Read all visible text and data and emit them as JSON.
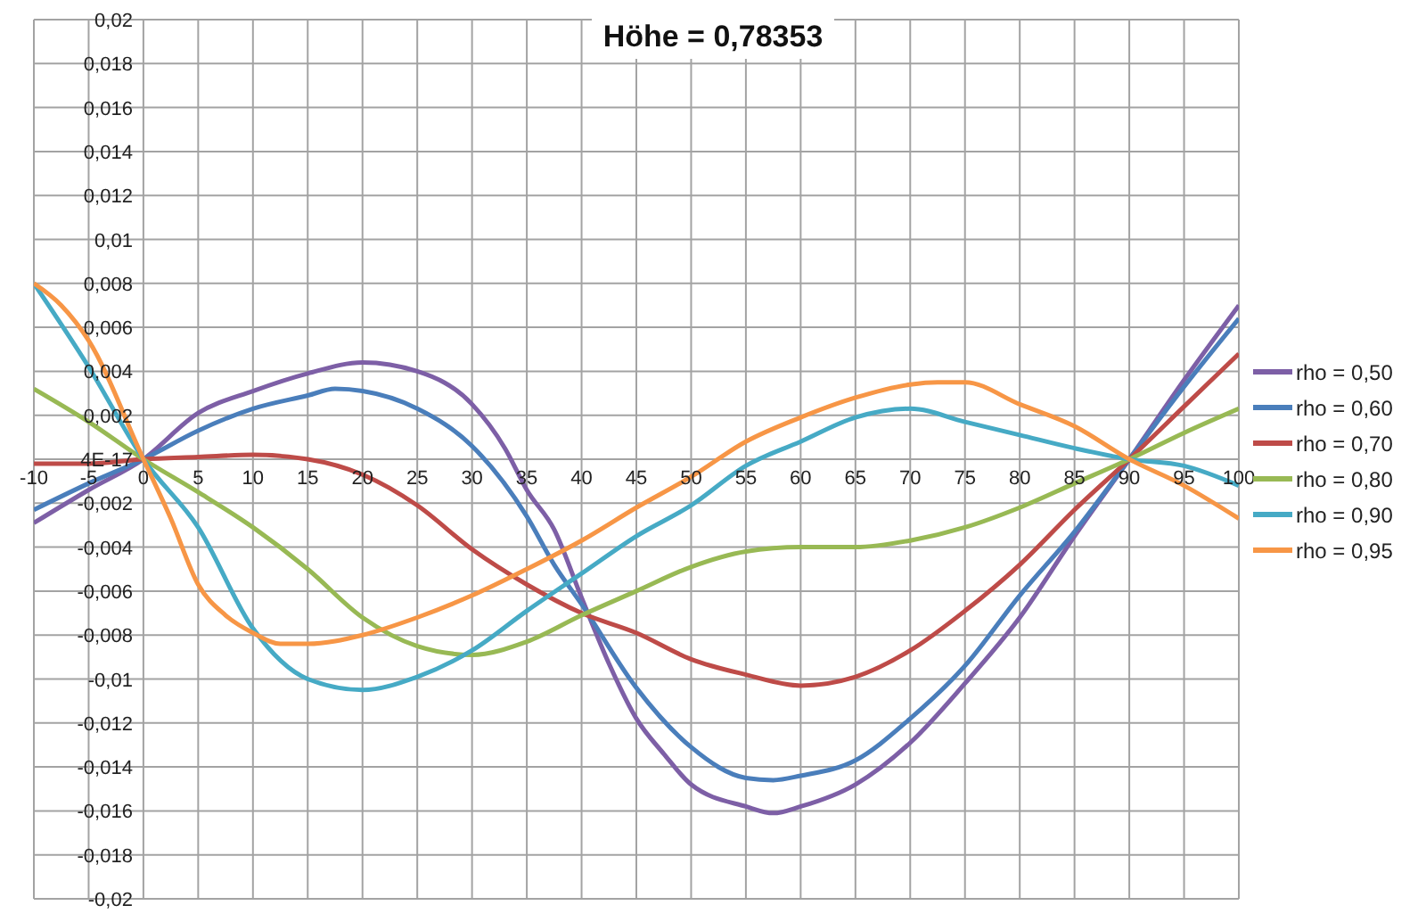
{
  "chart_data": {
    "type": "line",
    "title": "Höhe = 0,78353",
    "xlim": [
      -10,
      100
    ],
    "xticks": [
      -10,
      -5,
      0,
      5,
      10,
      15,
      20,
      25,
      30,
      35,
      40,
      45,
      50,
      55,
      60,
      65,
      70,
      75,
      80,
      85,
      90,
      95,
      100
    ],
    "ylim": [
      -0.02,
      0.02
    ],
    "yticks": [
      {
        "value": 0.02,
        "label": "0,02"
      },
      {
        "value": 0.018,
        "label": "0,018"
      },
      {
        "value": 0.016,
        "label": "0,016"
      },
      {
        "value": 0.014,
        "label": "0,014"
      },
      {
        "value": 0.012,
        "label": "0,012"
      },
      {
        "value": 0.01,
        "label": "0,01"
      },
      {
        "value": 0.008,
        "label": "0,008"
      },
      {
        "value": 0.006,
        "label": "0,006"
      },
      {
        "value": 0.004,
        "label": "0,004"
      },
      {
        "value": 0.002,
        "label": "0,002"
      },
      {
        "value": 0,
        "label": "4E-17"
      },
      {
        "value": -0.002,
        "label": "-0,002"
      },
      {
        "value": -0.004,
        "label": "-0,004"
      },
      {
        "value": -0.006,
        "label": "-0,006"
      },
      {
        "value": -0.008,
        "label": "-0,008"
      },
      {
        "value": -0.01,
        "label": "-0,01"
      },
      {
        "value": -0.012,
        "label": "-0,012"
      },
      {
        "value": -0.014,
        "label": "-0,014"
      },
      {
        "value": -0.016,
        "label": "-0,016"
      },
      {
        "value": -0.018,
        "label": "-0,018"
      },
      {
        "value": -0.02,
        "label": "-0,02"
      }
    ],
    "grid": true,
    "legend": "right",
    "series": [
      {
        "name": "rho = 0,50",
        "color": "#7d5fa6",
        "x": [
          -10,
          -5,
          0,
          5,
          10,
          15,
          20,
          25,
          30,
          33,
          35,
          37.5,
          40,
          42.5,
          45,
          47.5,
          50,
          55,
          57.5,
          60,
          65,
          70,
          75,
          80,
          85,
          90,
          95,
          100
        ],
        "values": [
          -0.0029,
          -0.0014,
          0,
          0.0021,
          0.0031,
          0.0039,
          0.0044,
          0.004,
          0.0025,
          0.0005,
          -0.0014,
          -0.0032,
          -0.0063,
          -0.0093,
          -0.0118,
          -0.0134,
          -0.0148,
          -0.0158,
          -0.0161,
          -0.0158,
          -0.0148,
          -0.0129,
          -0.0102,
          -0.0072,
          -0.0035,
          0,
          0.0036,
          0.007
        ]
      },
      {
        "name": "rho = 0,60",
        "color": "#4a7ebb",
        "x": [
          -10,
          -5,
          0,
          5,
          10,
          15,
          17.5,
          20,
          25,
          30,
          35,
          37.5,
          40,
          45,
          50,
          55,
          57.5,
          60,
          65,
          70,
          75,
          80,
          85,
          90,
          95,
          100
        ],
        "values": [
          -0.0023,
          -0.0011,
          0,
          0.0013,
          0.0023,
          0.0029,
          0.0032,
          0.0031,
          0.0023,
          0.0006,
          -0.0026,
          -0.0048,
          -0.0066,
          -0.0104,
          -0.0131,
          -0.0145,
          -0.0146,
          -0.0144,
          -0.0137,
          -0.0118,
          -0.0094,
          -0.0062,
          -0.0033,
          0,
          0.0033,
          0.0064
        ]
      },
      {
        "name": "rho = 0,70",
        "color": "#be4b48",
        "x": [
          -10,
          -5,
          0,
          5,
          10,
          15,
          20,
          25,
          30,
          35,
          40,
          45,
          50,
          55,
          60,
          65,
          70,
          75,
          80,
          85,
          90,
          95,
          100
        ],
        "values": [
          -0.0002,
          -0.0002,
          0,
          0.0001,
          0.0002,
          0,
          -0.0007,
          -0.0021,
          -0.0041,
          -0.0057,
          -0.007,
          -0.0079,
          -0.0091,
          -0.0098,
          -0.0103,
          -0.0099,
          -0.0087,
          -0.0069,
          -0.0048,
          -0.0023,
          0,
          0.0024,
          0.0048
        ]
      },
      {
        "name": "rho = 0,80",
        "color": "#98b954",
        "x": [
          -10,
          -5,
          0,
          5,
          10,
          15,
          20,
          25,
          30,
          35,
          40,
          45,
          50,
          55,
          60,
          65,
          70,
          75,
          80,
          85,
          90,
          95,
          100
        ],
        "values": [
          0.0032,
          0.0017,
          0,
          -0.0015,
          -0.0031,
          -0.005,
          -0.0072,
          -0.0085,
          -0.0089,
          -0.0083,
          -0.0071,
          -0.006,
          -0.0049,
          -0.0042,
          -0.004,
          -0.004,
          -0.0037,
          -0.0031,
          -0.0022,
          -0.0011,
          0,
          0.0012,
          0.0023
        ]
      },
      {
        "name": "rho = 0,90",
        "color": "#46aac5",
        "x": [
          -10,
          -5,
          0,
          5,
          10,
          15,
          20,
          25,
          30,
          35,
          40,
          45,
          50,
          55,
          60,
          65,
          70,
          75,
          80,
          85,
          90,
          95,
          100
        ],
        "values": [
          0.008,
          0.0042,
          0,
          -0.0031,
          -0.0077,
          -0.01,
          -0.0105,
          -0.0099,
          -0.0087,
          -0.0069,
          -0.0052,
          -0.0035,
          -0.0021,
          -0.0003,
          0.0008,
          0.0019,
          0.0023,
          0.0017,
          0.0011,
          0.0005,
          0,
          -0.0003,
          -0.0012
        ]
      },
      {
        "name": "rho = 0,95",
        "color": "#f79646",
        "x": [
          -10,
          -7.5,
          -5,
          0,
          2.5,
          5,
          7.5,
          10,
          12.5,
          15,
          20,
          25,
          30,
          35,
          40,
          45,
          50,
          55,
          60,
          65,
          70,
          72.5,
          75,
          80,
          85,
          90,
          95,
          100
        ],
        "values": [
          0.008,
          0.007,
          0.0054,
          0,
          -0.0027,
          -0.0057,
          -0.0071,
          -0.0079,
          -0.0084,
          -0.0084,
          -0.008,
          -0.0072,
          -0.0062,
          -0.005,
          -0.0037,
          -0.0022,
          -0.0008,
          0.0008,
          0.0019,
          0.0028,
          0.0034,
          0.0035,
          0.0035,
          0.0025,
          0.0015,
          0,
          -0.0012,
          -0.0027
        ]
      }
    ]
  }
}
